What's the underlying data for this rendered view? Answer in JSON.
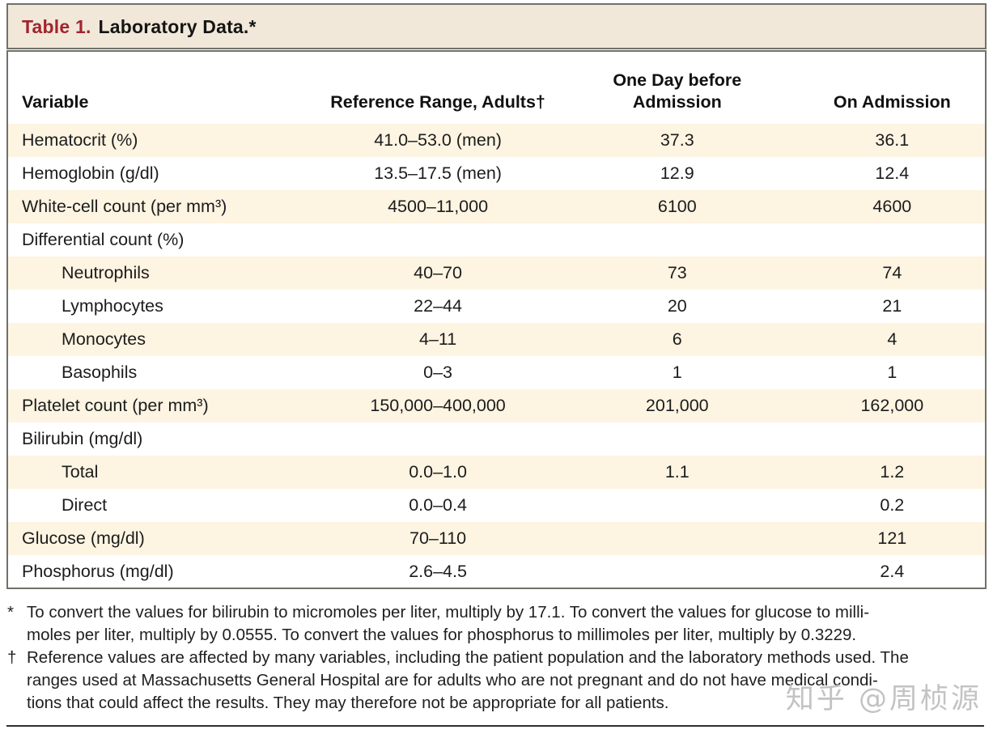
{
  "table": {
    "title_prefix": "Table 1.",
    "title": "Laboratory Data.*",
    "columns": [
      "Variable",
      "Reference Range, Adults†",
      "One Day before Admission",
      "On Admission"
    ],
    "rows": [
      {
        "indent": false,
        "cells": [
          "Hematocrit (%)",
          "41.0–53.0 (men)",
          "37.3",
          "36.1"
        ]
      },
      {
        "indent": false,
        "cells": [
          "Hemoglobin (g/dl)",
          "13.5–17.5 (men)",
          "12.9",
          "12.4"
        ]
      },
      {
        "indent": false,
        "cells": [
          "White-cell count (per mm³)",
          "4500–11,000",
          "6100",
          "4600"
        ]
      },
      {
        "indent": false,
        "cells": [
          "Differential count (%)",
          "",
          "",
          ""
        ]
      },
      {
        "indent": true,
        "cells": [
          "Neutrophils",
          "40–70",
          "73",
          "74"
        ]
      },
      {
        "indent": true,
        "cells": [
          "Lymphocytes",
          "22–44",
          "20",
          "21"
        ]
      },
      {
        "indent": true,
        "cells": [
          "Monocytes",
          "4–11",
          "6",
          "4"
        ]
      },
      {
        "indent": true,
        "cells": [
          "Basophils",
          "0–3",
          "1",
          "1"
        ]
      },
      {
        "indent": false,
        "cells": [
          "Platelet count (per mm³)",
          "150,000–400,000",
          "201,000",
          "162,000"
        ]
      },
      {
        "indent": false,
        "cells": [
          "Bilirubin (mg/dl)",
          "",
          "",
          ""
        ]
      },
      {
        "indent": true,
        "cells": [
          "Total",
          "0.0–1.0",
          "1.1",
          "1.2"
        ]
      },
      {
        "indent": true,
        "cells": [
          "Direct",
          "0.0–0.4",
          "",
          "0.2"
        ]
      },
      {
        "indent": false,
        "cells": [
          "Glucose (mg/dl)",
          "70–110",
          "",
          "121"
        ]
      },
      {
        "indent": false,
        "cells": [
          "Phosphorus (mg/dl)",
          "2.6–4.5",
          "",
          "2.4"
        ]
      }
    ]
  },
  "footnotes": [
    {
      "marker": "*",
      "lines": [
        "To convert the values for bilirubin to micromoles per liter, multiply by 17.1. To convert the values for glucose to milli-",
        "moles per liter, multiply by 0.0555. To convert the values for phosphorus to millimoles per liter, multiply by 0.3229."
      ]
    },
    {
      "marker": "†",
      "lines": [
        "Reference values are affected by many variables, including the patient population and the laboratory methods used. The",
        "ranges used at Massachusetts General Hospital are for adults who are not pregnant and do not have medical condi-",
        "tions that could affect the results. They may therefore not be appropriate for all patients."
      ]
    }
  ],
  "watermark": {
    "text": "知乎 @周桢源"
  },
  "colors": {
    "title_red": "#a1252d",
    "title_bar_bg": "#f1e8da",
    "row_stripe": "#fdf4e2",
    "border_gray": "#71716a"
  }
}
